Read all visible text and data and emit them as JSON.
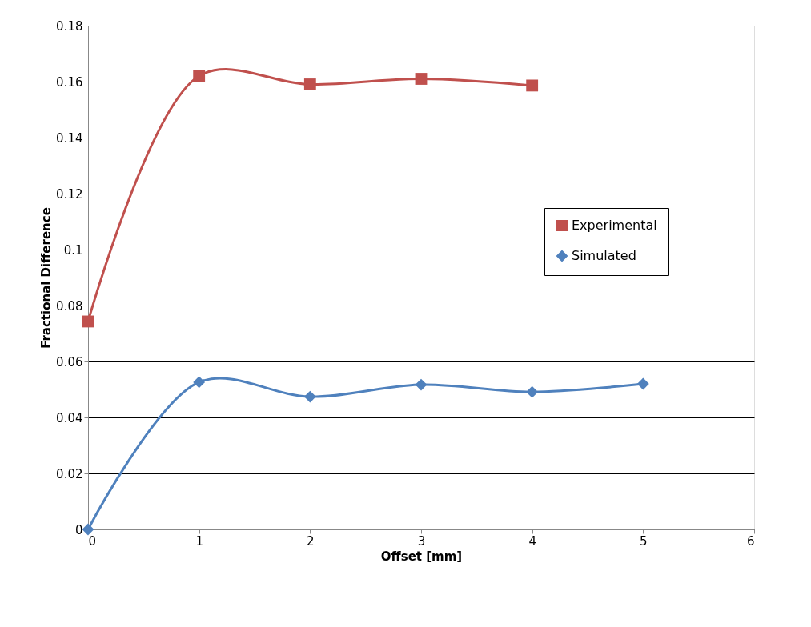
{
  "chart_data": {
    "type": "line",
    "xlabel": "Offset [mm]",
    "ylabel": "Fractional Difference",
    "xlim": [
      0,
      6
    ],
    "xticks": [
      0,
      1,
      2,
      3,
      4,
      5,
      6
    ],
    "ylim": [
      0,
      0.18
    ],
    "yticks": [
      0,
      0.02,
      0.04,
      0.06,
      0.08,
      0.1,
      0.12,
      0.14,
      0.16,
      0.18
    ],
    "grid": "y",
    "legend": "right",
    "series": [
      {
        "name": "Experimental",
        "color": "#c0504d",
        "marker": "square",
        "x": [
          0,
          1,
          2,
          3,
          4
        ],
        "values": [
          0.0743,
          0.162,
          0.159,
          0.161,
          0.1586
        ]
      },
      {
        "name": "Simulated",
        "color": "#4f81bd",
        "marker": "diamond",
        "x": [
          0,
          1,
          2,
          3,
          4,
          5
        ],
        "values": [
          0,
          0.0526,
          0.0474,
          0.0517,
          0.0491,
          0.052
        ]
      }
    ]
  }
}
